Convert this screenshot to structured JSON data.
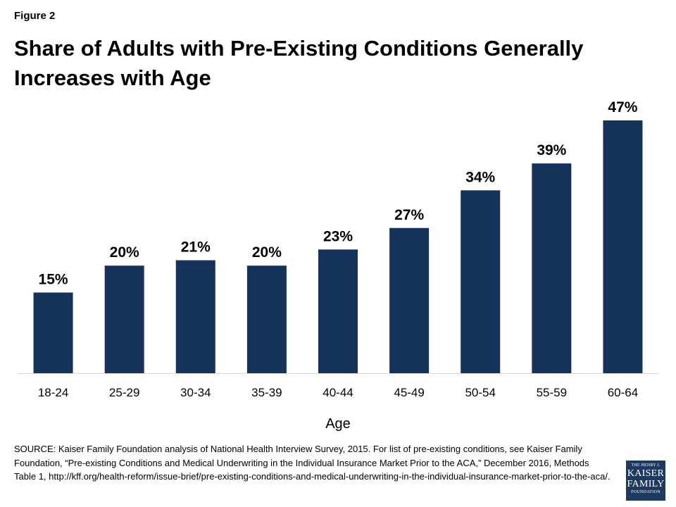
{
  "figure_label": "Figure 2",
  "title": "Share of Adults with Pre-Existing Conditions Generally Increases with Age",
  "source": "SOURCE: Kaiser Family Foundation  analysis of National Health Interview  Survey, 2015. For list of pre-existing conditions, see Kaiser Family Foundation, “Pre-existing Conditions and Medical Underwriting  in the Individual Insurance Market Prior to the ACA,” December 2016, Methods Table 1, http://kff.org/health-reform/issue-brief/pre-existing-conditions-and-medical-underwriting-in-the-individual-insurance-market-prior-to-the-aca/.",
  "logo": {
    "line1": "THE HENRY J.",
    "line2": "KAISER",
    "line3": "FAMILY",
    "line4": "FOUNDATION"
  },
  "colors": {
    "bar": "#14325a",
    "axis": "#d9d9d9",
    "logo_bg": "#1f3a60"
  },
  "chart_data": {
    "type": "bar",
    "categories": [
      "18-24",
      "25-29",
      "30-34",
      "35-39",
      "40-44",
      "45-49",
      "50-54",
      "55-59",
      "60-64"
    ],
    "values": [
      15,
      20,
      21,
      20,
      23,
      27,
      34,
      39,
      47
    ],
    "data_labels": [
      "15%",
      "20%",
      "21%",
      "20%",
      "23%",
      "27%",
      "34%",
      "39%",
      "47%"
    ],
    "xlabel": "Age",
    "ylabel": "",
    "ylim": [
      0,
      47
    ],
    "grid": false,
    "legend": "none"
  }
}
